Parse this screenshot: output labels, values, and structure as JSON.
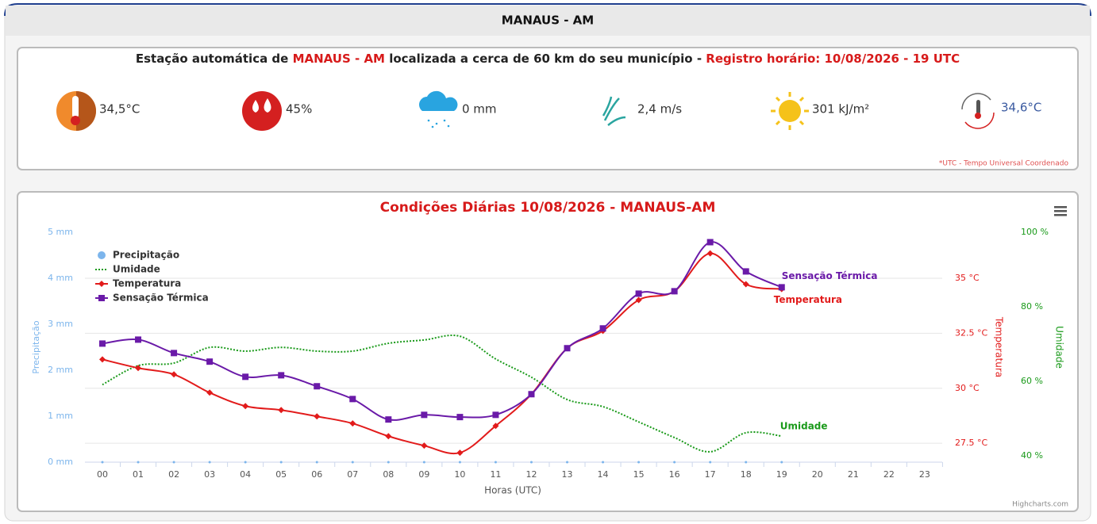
{
  "header": {
    "title": "MANAUS - AM"
  },
  "station": {
    "prefix": "Estação automática de ",
    "name": "MANAUS - AM",
    "middle": " localizada a cerca de 60 km do seu município - ",
    "record": "Registro horário: 10/08/2026 - 19 UTC",
    "readings": [
      "34,5°C",
      "45%",
      "0 mm",
      "2,4 m/s",
      "301 kJ/m²",
      "34,6°C"
    ],
    "note": "*UTC - Tempo Universal Coordenado"
  },
  "chart_data": {
    "type": "line",
    "title": "Condições Diárias 10/08/2026 - MANAUS-AM",
    "x_label": "Horas (UTC)",
    "y_label": "Precipitação",
    "y2_label": "Temperatura",
    "y3_label": "Umidade",
    "credit": "Highcharts.com",
    "categories": [
      "00",
      "01",
      "02",
      "03",
      "04",
      "05",
      "06",
      "07",
      "08",
      "09",
      "10",
      "11",
      "12",
      "13",
      "14",
      "15",
      "16",
      "17",
      "18",
      "19",
      "20",
      "21",
      "22",
      "23"
    ],
    "ylim": [
      0,
      5
    ],
    "yticks": [
      {
        "value": 0,
        "label": "0 mm"
      },
      {
        "value": 1,
        "label": "1 mm"
      },
      {
        "value": 2,
        "label": "2 mm"
      },
      {
        "value": 3,
        "label": "3 mm"
      },
      {
        "value": 4,
        "label": "4 mm"
      },
      {
        "value": 5,
        "label": "5 mm"
      }
    ],
    "y2lim": [
      26.64,
      37.09
    ],
    "y2ticks": [
      {
        "value": 27.5,
        "label": "27.5 °C"
      },
      {
        "value": 30,
        "label": "30 °C"
      },
      {
        "value": 32.5,
        "label": "32.5 °C"
      },
      {
        "value": 35,
        "label": "35 °C"
      }
    ],
    "y3lim": [
      38.3,
      100
    ],
    "y3ticks": [
      {
        "value": 40,
        "label": "40 %"
      },
      {
        "value": 60,
        "label": "60 %"
      },
      {
        "value": 80,
        "label": "80 %"
      },
      {
        "value": 100,
        "label": "100 %"
      }
    ],
    "grid": true,
    "series": [
      {
        "name": "Precipitação",
        "color": "#7cb5ec",
        "axis": "y",
        "values": [
          0,
          0,
          0,
          0,
          0,
          0,
          0,
          0,
          0,
          0,
          0,
          0,
          0,
          0,
          0,
          0,
          0,
          0,
          0,
          0,
          null,
          null,
          null,
          null
        ]
      },
      {
        "name": "Umidade",
        "color": "#1a9a1a",
        "axis": "y3",
        "values": [
          59.1,
          64.2,
          64.9,
          69.1,
          68.1,
          69.1,
          68.1,
          68.1,
          70.2,
          71.1,
          72.1,
          66.0,
          61.1,
          55.1,
          53.2,
          49.1,
          44.9,
          41.1,
          46.2,
          45.3,
          null,
          null,
          null,
          null
        ]
      },
      {
        "name": "Temperatura",
        "color": "#e21b1b",
        "axis": "y2",
        "values": [
          31.31,
          30.92,
          30.63,
          29.8,
          29.19,
          29.01,
          28.72,
          28.4,
          27.82,
          27.39,
          27.07,
          28.29,
          29.73,
          31.82,
          32.61,
          34.01,
          34.41,
          36.13,
          34.73,
          34.51,
          null,
          null,
          null,
          null
        ]
      },
      {
        "name": "Sensação Térmica",
        "color": "#6a1aa8",
        "axis": "y2",
        "values": [
          32.03,
          32.21,
          31.6,
          31.21,
          30.52,
          30.59,
          30.09,
          29.51,
          28.58,
          28.79,
          28.69,
          28.79,
          29.73,
          31.82,
          32.72,
          34.3,
          34.41,
          36.64,
          35.31,
          34.59,
          null,
          null,
          null,
          null
        ]
      }
    ]
  }
}
